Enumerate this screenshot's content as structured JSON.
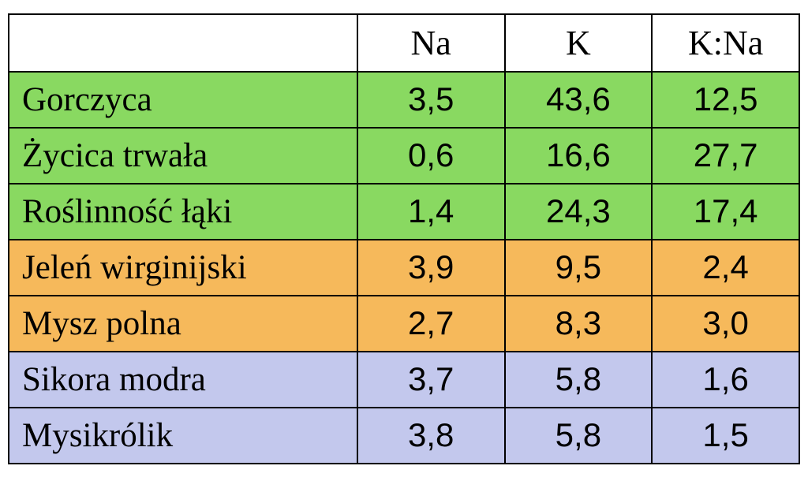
{
  "table": {
    "columns": [
      "",
      "Na",
      "K",
      "K:Na"
    ],
    "header_bg": "#ffffff",
    "border_color": "#000000",
    "group_colors": {
      "plants": "#89d961",
      "mammals": "#f6b95b",
      "birds": "#c3c8ed"
    },
    "rows": [
      {
        "label": "Gorczyca",
        "na": "3,5",
        "k": "43,6",
        "kna": "12,5",
        "bg": "#89d961"
      },
      {
        "label": "Życica trwała",
        "na": "0,6",
        "k": "16,6",
        "kna": "27,7",
        "bg": "#89d961"
      },
      {
        "label": "Roślinność łąki",
        "na": "1,4",
        "k": "24,3",
        "kna": "17,4",
        "bg": "#89d961"
      },
      {
        "label": "Jeleń wirginijski",
        "na": "3,9",
        "k": "9,5",
        "kna": "2,4",
        "bg": "#f6b95b"
      },
      {
        "label": "Mysz polna",
        "na": "2,7",
        "k": "8,3",
        "kna": "3,0",
        "bg": "#f6b95b"
      },
      {
        "label": "Sikora modra",
        "na": "3,7",
        "k": "5,8",
        "kna": "1,6",
        "bg": "#c3c8ed"
      },
      {
        "label": "Mysikrólik",
        "na": "3,8",
        "k": "5,8",
        "kna": "1,5",
        "bg": "#c3c8ed"
      }
    ],
    "label_font": "Times New Roman, serif",
    "value_font": "Arial, Helvetica, sans-serif",
    "label_fontsize": 43,
    "value_fontsize": 42,
    "header_fontsize": 44
  }
}
